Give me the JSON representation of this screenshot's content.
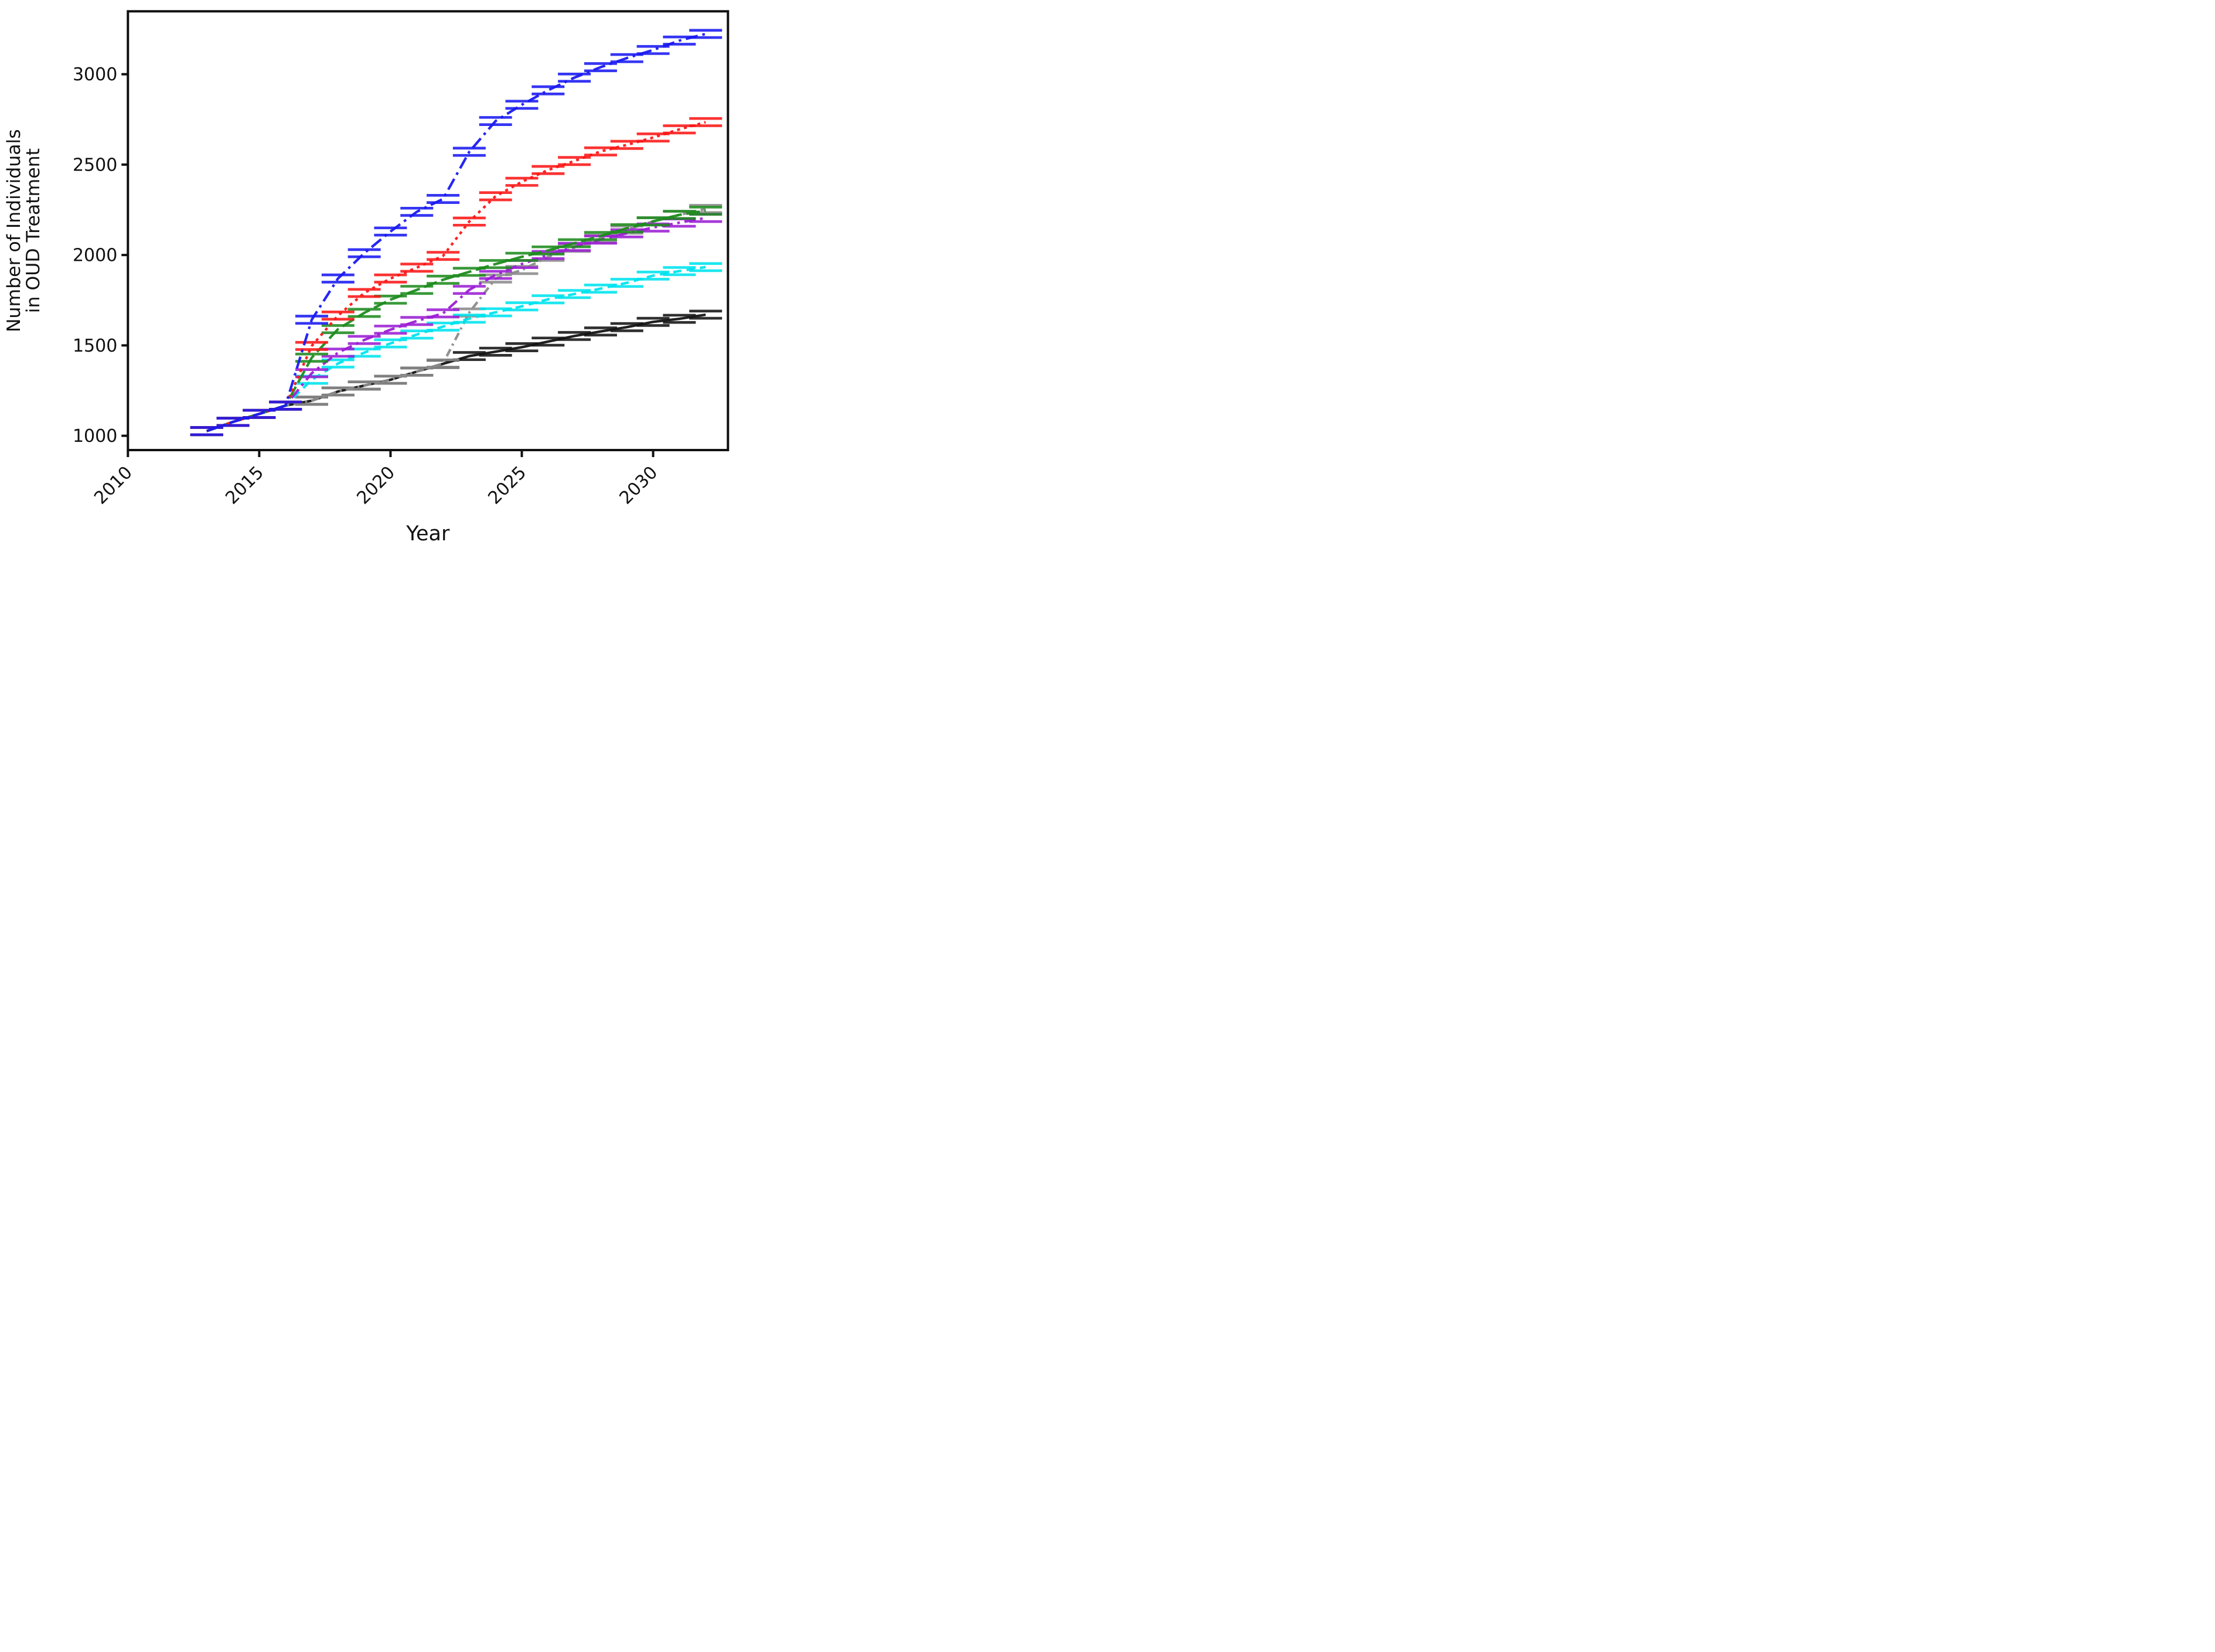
{
  "figure": {
    "background": "#ffffff",
    "axis_color": "#111111"
  },
  "chart_data": {
    "type": "line",
    "title": "",
    "xlabel": "Year",
    "ylabel_lines": [
      "Number of Individuals",
      "in OUD Treatment"
    ],
    "grid": false,
    "legend_position": "none",
    "xlim": [
      2010,
      2032.85
    ],
    "ylim": [
      921,
      3348
    ],
    "x_ticks": [
      2010,
      2015,
      2020,
      2025,
      2030
    ],
    "x_tick_labels": [
      "2010",
      "2015",
      "2020",
      "2025",
      "2030"
    ],
    "y_ticks": [
      1000,
      1500,
      2000,
      2500,
      3000
    ],
    "y_tick_labels": [
      "1000",
      "1500",
      "2000",
      "2500",
      "3000"
    ],
    "x": [
      2013,
      2014,
      2015,
      2016,
      2017,
      2018,
      2019,
      2020,
      2021,
      2022,
      2023,
      2024,
      2025,
      2026,
      2027,
      2028,
      2029,
      2030,
      2031,
      2032
    ],
    "marker": "errorbar-cap-pair",
    "error_cap_halfheight": 20,
    "series": [
      {
        "name": "black-solid",
        "color": "#141414",
        "linestyle": "solid",
        "dash": [],
        "values": [
          1026,
          1077,
          1121,
          1167,
          1194,
          1245,
          1278,
          1310,
          1355,
          1398,
          1441,
          1465,
          1490,
          1521,
          1552,
          1577,
          1601,
          1630,
          1647,
          1670
        ]
      },
      {
        "name": "gray-dashdot",
        "color": "#8c8c8c",
        "linestyle": "dashdot",
        "dash": [
          13.5,
          7,
          3.5,
          7
        ],
        "values": [
          1026,
          1077,
          1121,
          1167,
          1194,
          1245,
          1278,
          1310,
          1355,
          1400,
          1682,
          1870,
          1917,
          1990,
          2040,
          2090,
          2140,
          2186,
          2222,
          2255
        ]
      },
      {
        "name": "cyan-dashed",
        "color": "#00e4ef",
        "linestyle": "dashed",
        "dash": [
          14,
          9
        ],
        "values": [
          1026,
          1077,
          1121,
          1167,
          1310,
          1400,
          1460,
          1511,
          1560,
          1604,
          1648,
          1683,
          1716,
          1755,
          1784,
          1814,
          1846,
          1886,
          1911,
          1933
        ]
      },
      {
        "name": "purple-dashdot",
        "color": "#9c1fd4",
        "linestyle": "dashdot",
        "dash": [
          19,
          8,
          4.5,
          8
        ],
        "values": [
          1026,
          1077,
          1121,
          1167,
          1346,
          1460,
          1530,
          1587,
          1635,
          1677,
          1807,
          1890,
          1950,
          2000,
          2045,
          2085,
          2120,
          2152,
          2179,
          2205
        ]
      },
      {
        "name": "green-dashed",
        "color": "#1e8c1e",
        "linestyle": "dashed",
        "dash": [
          23,
          8
        ],
        "values": [
          1026,
          1077,
          1121,
          1167,
          1432,
          1590,
          1680,
          1753,
          1807,
          1863,
          1907,
          1950,
          1990,
          2025,
          2065,
          2105,
          2148,
          2186,
          2222,
          2245
        ]
      },
      {
        "name": "red-dotted",
        "color": "#fb1717",
        "linestyle": "dotted",
        "dash": [
          5,
          7
        ],
        "values": [
          1026,
          1077,
          1121,
          1167,
          1497,
          1665,
          1790,
          1870,
          1930,
          1995,
          2185,
          2325,
          2405,
          2470,
          2520,
          2573,
          2609,
          2650,
          2695,
          2735
        ]
      },
      {
        "name": "blue-dashdot",
        "color": "#1a1af2",
        "linestyle": "dashdot",
        "dash": [
          21,
          8,
          4.5,
          8
        ],
        "values": [
          1026,
          1077,
          1121,
          1167,
          1642,
          1870,
          2010,
          2130,
          2239,
          2310,
          2571,
          2741,
          2831,
          2911,
          2981,
          3039,
          3089,
          3134,
          3186,
          3223
        ]
      }
    ]
  }
}
